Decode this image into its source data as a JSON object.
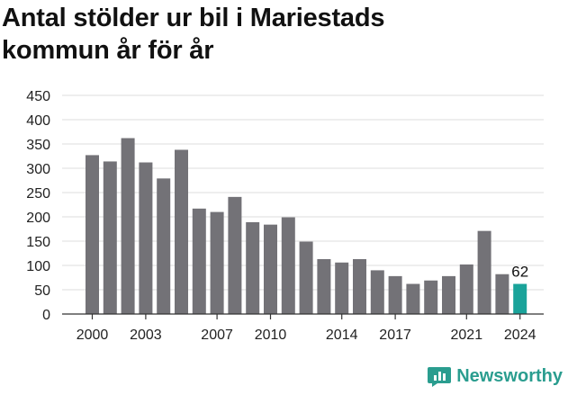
{
  "title_line1": "Antal stölder ur bil i Mariestads",
  "title_line2": "kommun år för år",
  "brand": "Newsworthy",
  "colors": {
    "bar": "#737277",
    "highlight": "#1aa39a",
    "grid": "#dddddd",
    "text": "#111111",
    "brand": "#2a9d8f"
  },
  "chart_data": {
    "type": "bar",
    "title": "Antal stölder ur bil i Mariestads kommun år för år",
    "xlabel": "",
    "ylabel": "",
    "ylim": [
      0,
      450
    ],
    "yticks": [
      0,
      50,
      100,
      150,
      200,
      250,
      300,
      350,
      400,
      450
    ],
    "xtick_labels": [
      "2000",
      "2003",
      "2007",
      "2010",
      "2014",
      "2017",
      "2021",
      "2024"
    ],
    "grid": true,
    "categories": [
      "2000",
      "2001",
      "2002",
      "2003",
      "2004",
      "2005",
      "2006",
      "2007",
      "2008",
      "2009",
      "2010",
      "2011",
      "2012",
      "2013",
      "2014",
      "2015",
      "2016",
      "2017",
      "2018",
      "2019",
      "2020",
      "2021",
      "2022",
      "2023",
      "2024"
    ],
    "values": [
      327,
      314,
      362,
      312,
      279,
      338,
      217,
      210,
      241,
      189,
      184,
      199,
      149,
      113,
      106,
      113,
      90,
      78,
      62,
      69,
      78,
      102,
      171,
      82,
      62
    ],
    "highlight": {
      "category": "2024",
      "value": 62,
      "label": "62"
    }
  }
}
